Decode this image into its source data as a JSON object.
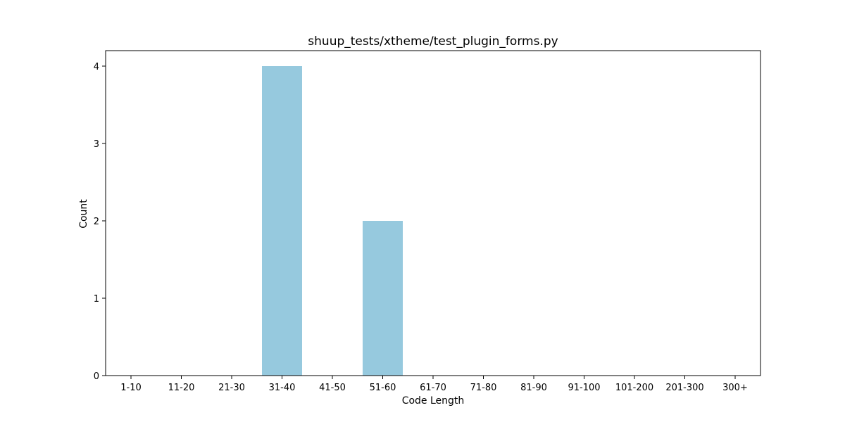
{
  "chart_data": {
    "type": "bar",
    "title": "shuup_tests/xtheme/test_plugin_forms.py",
    "xlabel": "Code Length",
    "ylabel": "Count",
    "categories": [
      "1-10",
      "11-20",
      "21-30",
      "31-40",
      "41-50",
      "51-60",
      "61-70",
      "71-80",
      "81-90",
      "91-100",
      "101-200",
      "201-300",
      "300+"
    ],
    "values": [
      0,
      0,
      0,
      4,
      0,
      2,
      0,
      0,
      0,
      0,
      0,
      0,
      0
    ],
    "ylim": [
      0,
      4.2
    ],
    "yticks": [
      0,
      1,
      2,
      3,
      4
    ],
    "grid": false,
    "bar_color": "#96c9de",
    "axis_color": "#000000"
  }
}
